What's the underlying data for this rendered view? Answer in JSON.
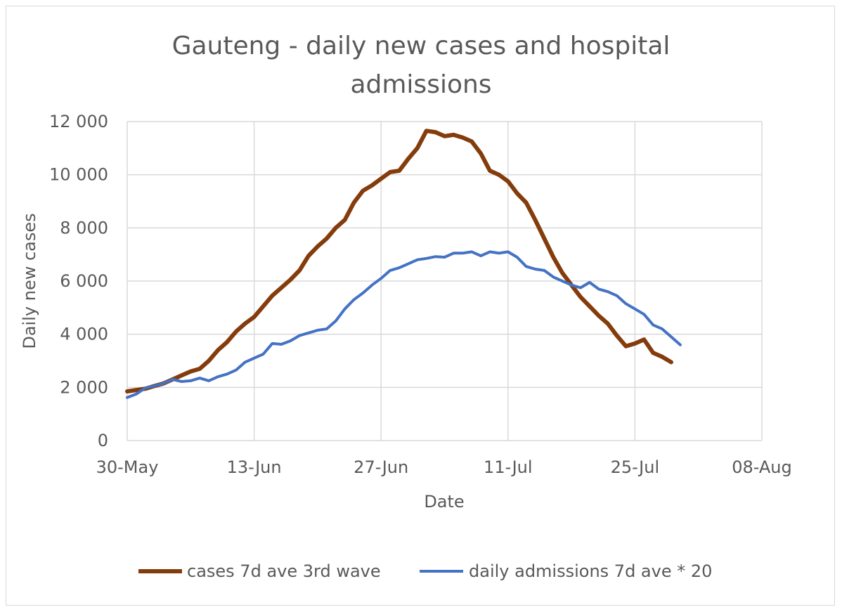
{
  "chart_data": {
    "type": "line",
    "title_lines": [
      "Gauteng - daily new cases and hospital",
      "admissions"
    ],
    "xlabel": "Date",
    "ylabel": "Daily new cases",
    "x_ticks": [
      "30-May",
      "13-Jun",
      "27-Jun",
      "11-Jul",
      "25-Jul",
      "08-Aug"
    ],
    "y_ticks": [
      "0",
      "2 000",
      "4 000",
      "6 000",
      "8 000",
      "10 000",
      "12 000"
    ],
    "xlim": [
      "2021-05-30",
      "2021-08-08"
    ],
    "ylim": [
      0,
      12000
    ],
    "grid": true,
    "legend_position": "bottom",
    "series": [
      {
        "name": "cases 7d ave 3rd wave",
        "color": "#843C0C",
        "x": [
          "2021-05-30",
          "2021-05-31",
          "2021-06-01",
          "2021-06-02",
          "2021-06-03",
          "2021-06-04",
          "2021-06-05",
          "2021-06-06",
          "2021-06-07",
          "2021-06-08",
          "2021-06-09",
          "2021-06-10",
          "2021-06-11",
          "2021-06-12",
          "2021-06-13",
          "2021-06-14",
          "2021-06-15",
          "2021-06-16",
          "2021-06-17",
          "2021-06-18",
          "2021-06-19",
          "2021-06-20",
          "2021-06-21",
          "2021-06-22",
          "2021-06-23",
          "2021-06-24",
          "2021-06-25",
          "2021-06-26",
          "2021-06-27",
          "2021-06-28",
          "2021-06-29",
          "2021-06-30",
          "2021-07-01",
          "2021-07-02",
          "2021-07-03",
          "2021-07-04",
          "2021-07-05",
          "2021-07-06",
          "2021-07-07",
          "2021-07-08",
          "2021-07-09",
          "2021-07-10",
          "2021-07-11",
          "2021-07-12",
          "2021-07-13",
          "2021-07-14",
          "2021-07-15",
          "2021-07-16",
          "2021-07-17",
          "2021-07-18",
          "2021-07-19",
          "2021-07-20",
          "2021-07-21",
          "2021-07-22",
          "2021-07-23",
          "2021-07-24",
          "2021-07-25",
          "2021-07-26",
          "2021-07-27",
          "2021-07-28",
          "2021-07-29",
          "2021-07-30"
        ],
        "values": [
          1850,
          1900,
          1950,
          2050,
          2150,
          2300,
          2450,
          2600,
          2700,
          3000,
          3400,
          3700,
          4100,
          4400,
          4650,
          5050,
          5450,
          5750,
          6050,
          6400,
          6950,
          7300,
          7600,
          8000,
          8300,
          8950,
          9400,
          9600,
          9850,
          10100,
          10150,
          10600,
          11000,
          11650,
          11600,
          11450,
          11500,
          11400,
          11250,
          10800,
          10150,
          10000,
          9750,
          9300,
          8950,
          8300,
          7600,
          6900,
          6300,
          5850,
          5400,
          5050,
          4700,
          4400,
          3950,
          3550,
          3650,
          3800,
          3300,
          3150,
          2950,
          null
        ],
        "note_values_only_to_jul_30": true
      },
      {
        "name": "daily admissions 7d ave * 20",
        "color": "#4472C4",
        "x": [
          "2021-05-30",
          "2021-05-31",
          "2021-06-01",
          "2021-06-02",
          "2021-06-03",
          "2021-06-04",
          "2021-06-05",
          "2021-06-06",
          "2021-06-07",
          "2021-06-08",
          "2021-06-09",
          "2021-06-10",
          "2021-06-11",
          "2021-06-12",
          "2021-06-13",
          "2021-06-14",
          "2021-06-15",
          "2021-06-16",
          "2021-06-17",
          "2021-06-18",
          "2021-06-19",
          "2021-06-20",
          "2021-06-21",
          "2021-06-22",
          "2021-06-23",
          "2021-06-24",
          "2021-06-25",
          "2021-06-26",
          "2021-06-27",
          "2021-06-28",
          "2021-06-29",
          "2021-06-30",
          "2021-07-01",
          "2021-07-02",
          "2021-07-03",
          "2021-07-04",
          "2021-07-05",
          "2021-07-06",
          "2021-07-07",
          "2021-07-08",
          "2021-07-09",
          "2021-07-10",
          "2021-07-11",
          "2021-07-12",
          "2021-07-13",
          "2021-07-14",
          "2021-07-15",
          "2021-07-16",
          "2021-07-17",
          "2021-07-18",
          "2021-07-19",
          "2021-07-20",
          "2021-07-21",
          "2021-07-22",
          "2021-07-23",
          "2021-07-24",
          "2021-07-25",
          "2021-07-26",
          "2021-07-27",
          "2021-07-28",
          "2021-07-29",
          "2021-07-30"
        ],
        "values": [
          1620,
          1750,
          1980,
          2050,
          2150,
          2300,
          2220,
          2250,
          2350,
          2250,
          2400,
          2500,
          2650,
          2950,
          3100,
          3250,
          3650,
          3620,
          3750,
          3950,
          4050,
          4150,
          4200,
          4500,
          4950,
          5300,
          5550,
          5850,
          6100,
          6400,
          6500,
          6650,
          6800,
          6850,
          6920,
          6900,
          7050,
          7050,
          7100,
          6950,
          7100,
          7050,
          7100,
          6900,
          6550,
          6450,
          6400,
          6150,
          6000,
          5850,
          5750,
          5950,
          5700,
          5600,
          5450,
          5150,
          4950,
          4750,
          4350,
          4200,
          3900,
          3600
        ]
      }
    ]
  }
}
